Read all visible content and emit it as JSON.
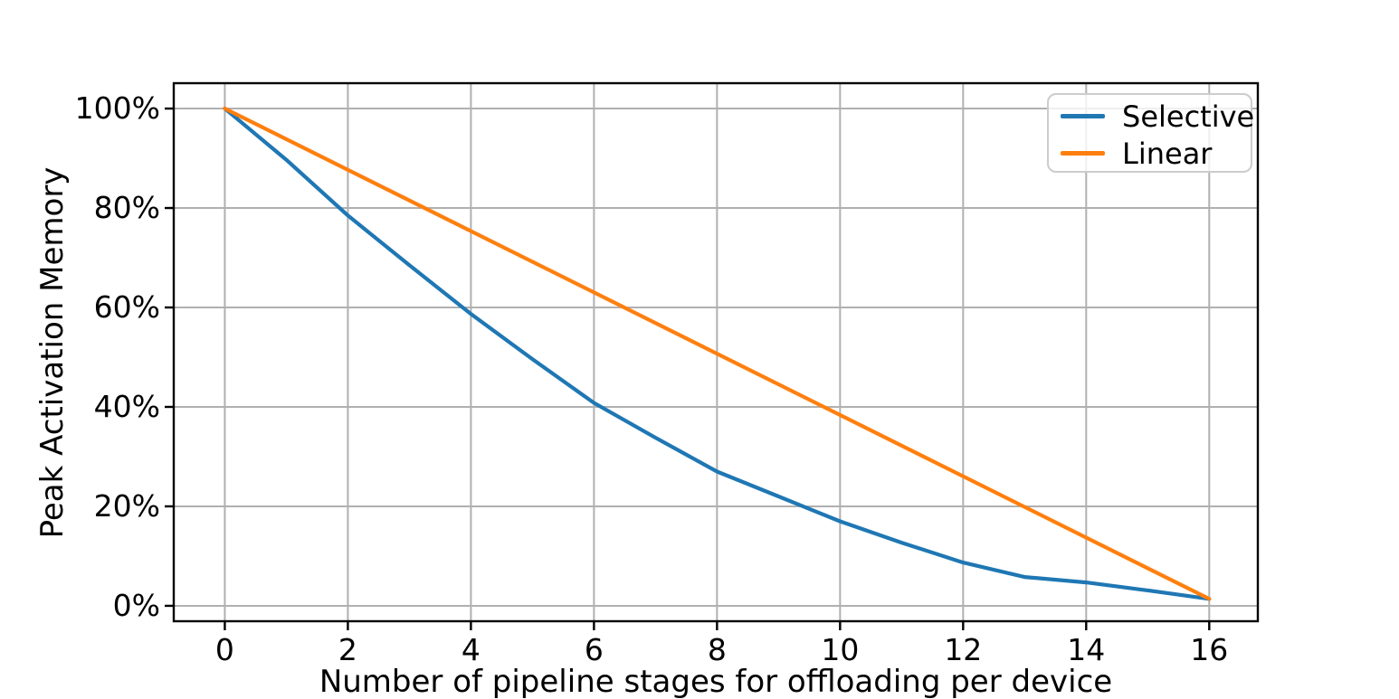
{
  "figure": {
    "background": "#ffffff",
    "text_color": "#000000",
    "grid_color": "#b0b0b0",
    "spine_color": "#000000"
  },
  "chart_data": {
    "type": "line",
    "title": "",
    "xlabel": "Number of pipeline stages for offloading per device",
    "ylabel": "Peak Activation Memory",
    "xlim": [
      -0.83,
      16.79
    ],
    "ylim": [
      -3.1,
      105.1
    ],
    "grid": true,
    "legend_position": "upper right",
    "x_ticks": {
      "values": [
        0,
        2,
        4,
        6,
        8,
        10,
        12,
        14,
        16
      ],
      "labels": [
        "0",
        "2",
        "4",
        "6",
        "8",
        "10",
        "12",
        "14",
        "16"
      ]
    },
    "y_ticks": {
      "values": [
        0,
        20,
        40,
        60,
        80,
        100
      ],
      "labels": [
        "0%",
        "20%",
        "40%",
        "60%",
        "80%",
        "100%"
      ]
    },
    "series": [
      {
        "name": "Selective",
        "color": "#1f77b4",
        "x": [
          0,
          1,
          2,
          3,
          4,
          5,
          6,
          7,
          8,
          9,
          10,
          11,
          12,
          13,
          14,
          15,
          16
        ],
        "y": [
          100,
          89.7,
          78.5,
          68.5,
          58.7,
          49.6,
          40.8,
          33.8,
          27,
          22,
          17,
          12.7,
          8.7,
          5.8,
          4.7,
          3.1,
          1.4
        ]
      },
      {
        "name": "Linear",
        "color": "#ff7f0e",
        "x": [
          0,
          16
        ],
        "y": [
          100,
          1.4
        ]
      }
    ]
  }
}
